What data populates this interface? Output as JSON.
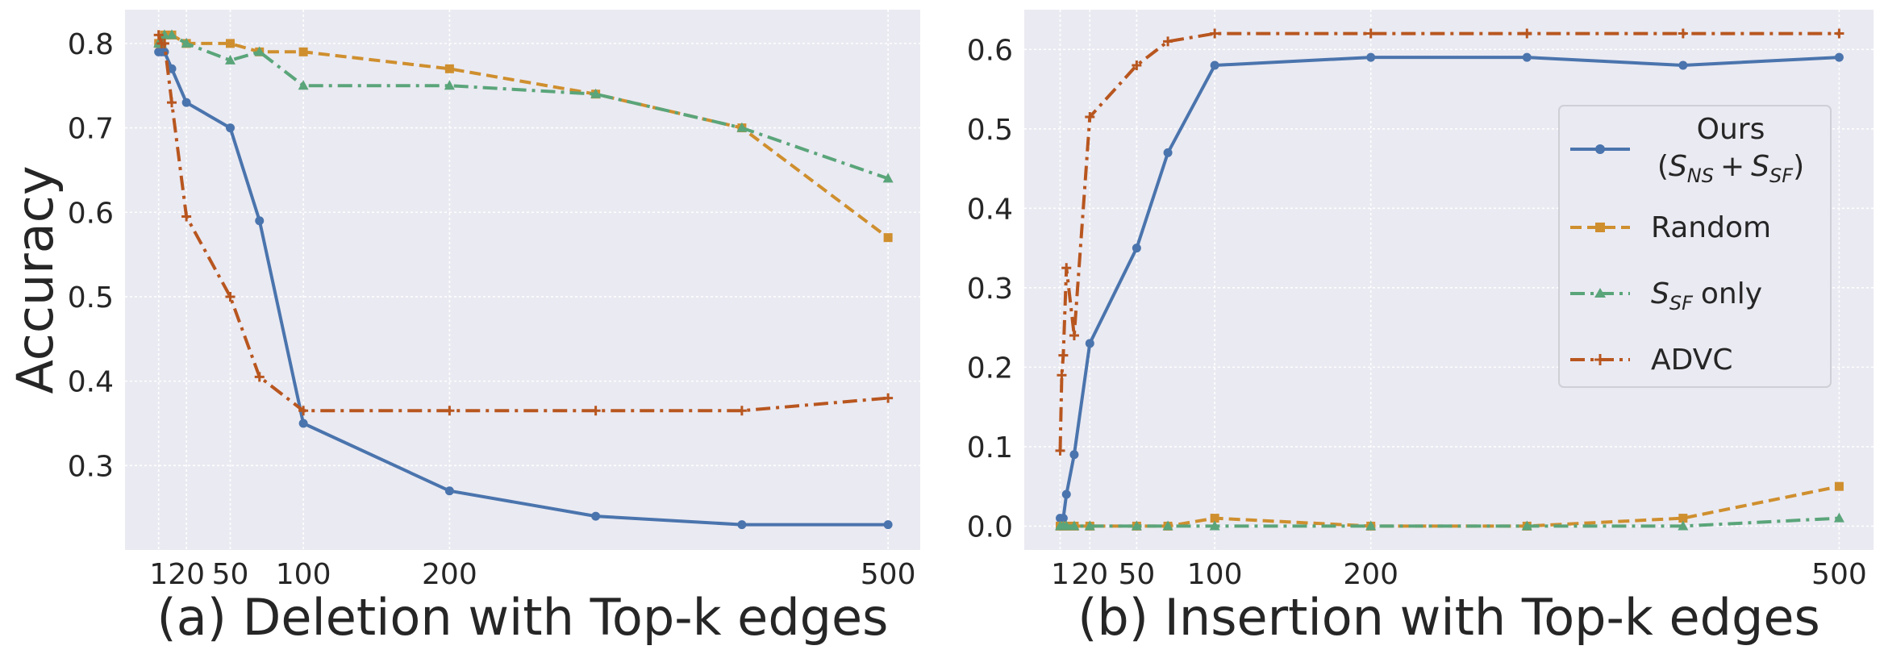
{
  "chart_data": [
    {
      "type": "line",
      "title": "(a) Deletion with Top-k edges",
      "xlabel": "",
      "ylabel": "Accuracy",
      "xlim": [
        -22,
        522
      ],
      "ylim": [
        0.2,
        0.84
      ],
      "x_ticks": [
        1,
        20,
        50,
        100,
        200,
        500
      ],
      "x_tick_labels": [
        "1",
        "20",
        "50",
        "100",
        "200",
        "500"
      ],
      "y_ticks": [
        0.3,
        0.4,
        0.5,
        0.6,
        0.7,
        0.8
      ],
      "y_tick_labels": [
        "0.3",
        "0.4",
        "0.5",
        "0.6",
        "0.7",
        "0.8"
      ],
      "grid": true,
      "series": [
        {
          "name": "Ours (S_NS + S_SF)",
          "color": "#4a74ad",
          "dash": "solid",
          "marker": "circle",
          "points": [
            [
              1,
              0.79
            ],
            [
              3,
              0.79
            ],
            [
              5,
              0.79
            ],
            [
              10,
              0.77
            ],
            [
              20,
              0.73
            ],
            [
              50,
              0.7
            ],
            [
              70,
              0.59
            ],
            [
              100,
              0.35
            ],
            [
              200,
              0.27
            ],
            [
              300,
              0.24
            ],
            [
              400,
              0.23
            ],
            [
              500,
              0.23
            ]
          ]
        },
        {
          "name": "Random",
          "color": "#cf8f2e",
          "dash": "dashed",
          "marker": "square",
          "points": [
            [
              1,
              0.8
            ],
            [
              3,
              0.8
            ],
            [
              5,
              0.81
            ],
            [
              10,
              0.81
            ],
            [
              20,
              0.8
            ],
            [
              50,
              0.8
            ],
            [
              70,
              0.79
            ],
            [
              100,
              0.79
            ],
            [
              200,
              0.77
            ],
            [
              300,
              0.74
            ],
            [
              400,
              0.7
            ],
            [
              500,
              0.57
            ]
          ]
        },
        {
          "name": "S_SF only",
          "color": "#5aa57a",
          "dash": "dashdot",
          "marker": "triangle",
          "points": [
            [
              1,
              0.8
            ],
            [
              3,
              0.8
            ],
            [
              5,
              0.81
            ],
            [
              10,
              0.81
            ],
            [
              20,
              0.8
            ],
            [
              50,
              0.78
            ],
            [
              70,
              0.79
            ],
            [
              100,
              0.75
            ],
            [
              200,
              0.75
            ],
            [
              300,
              0.74
            ],
            [
              400,
              0.7
            ],
            [
              500,
              0.64
            ]
          ]
        },
        {
          "name": "ADVC",
          "color": "#b8561f",
          "dash": "dashdot",
          "marker": "plus",
          "points": [
            [
              1,
              0.81
            ],
            [
              3,
              0.8
            ],
            [
              5,
              0.8
            ],
            [
              10,
              0.73
            ],
            [
              20,
              0.595
            ],
            [
              50,
              0.5
            ],
            [
              70,
              0.405
            ],
            [
              100,
              0.365
            ],
            [
              200,
              0.365
            ],
            [
              300,
              0.365
            ],
            [
              400,
              0.365
            ],
            [
              500,
              0.38
            ]
          ]
        }
      ]
    },
    {
      "type": "line",
      "title": "(b) Insertion with Top-k edges",
      "xlabel": "",
      "ylabel": "",
      "xlim": [
        -22,
        522
      ],
      "ylim": [
        -0.03,
        0.65
      ],
      "x_ticks": [
        1,
        20,
        50,
        100,
        200,
        500
      ],
      "x_tick_labels": [
        "1",
        "20",
        "50",
        "100",
        "200",
        "500"
      ],
      "y_ticks": [
        0.0,
        0.1,
        0.2,
        0.3,
        0.4,
        0.5,
        0.6
      ],
      "y_tick_labels": [
        "0.0",
        "0.1",
        "0.2",
        "0.3",
        "0.4",
        "0.5",
        "0.6"
      ],
      "grid": true,
      "legend_position": "center-right",
      "series": [
        {
          "name": "Ours (S_NS + S_SF)",
          "color": "#4a74ad",
          "dash": "solid",
          "marker": "circle",
          "points": [
            [
              1,
              0.01
            ],
            [
              3,
              0.01
            ],
            [
              5,
              0.04
            ],
            [
              10,
              0.09
            ],
            [
              20,
              0.23
            ],
            [
              50,
              0.35
            ],
            [
              70,
              0.47
            ],
            [
              100,
              0.58
            ],
            [
              200,
              0.59
            ],
            [
              300,
              0.59
            ],
            [
              400,
              0.58
            ],
            [
              500,
              0.59
            ]
          ]
        },
        {
          "name": "Random",
          "color": "#cf8f2e",
          "dash": "dashed",
          "marker": "square",
          "points": [
            [
              1,
              0.0
            ],
            [
              3,
              0.0
            ],
            [
              5,
              0.0
            ],
            [
              10,
              0.0
            ],
            [
              20,
              0.0
            ],
            [
              50,
              0.0
            ],
            [
              70,
              0.0
            ],
            [
              100,
              0.01
            ],
            [
              200,
              0.0
            ],
            [
              300,
              0.0
            ],
            [
              400,
              0.01
            ],
            [
              500,
              0.05
            ]
          ]
        },
        {
          "name": "S_SF only",
          "color": "#5aa57a",
          "dash": "dashdot",
          "marker": "triangle",
          "points": [
            [
              1,
              0.0
            ],
            [
              3,
              0.0
            ],
            [
              5,
              0.0
            ],
            [
              10,
              0.0
            ],
            [
              20,
              0.0
            ],
            [
              50,
              0.0
            ],
            [
              70,
              0.0
            ],
            [
              100,
              0.0
            ],
            [
              200,
              0.0
            ],
            [
              300,
              0.0
            ],
            [
              400,
              0.0
            ],
            [
              500,
              0.01
            ]
          ]
        },
        {
          "name": "ADVC",
          "color": "#b8561f",
          "dash": "dashdot",
          "marker": "plus",
          "points": [
            [
              1,
              0.095
            ],
            [
              2,
              0.19
            ],
            [
              3,
              0.215
            ],
            [
              5,
              0.325
            ],
            [
              10,
              0.24
            ],
            [
              20,
              0.515
            ],
            [
              50,
              0.58
            ],
            [
              70,
              0.61
            ],
            [
              100,
              0.62
            ],
            [
              200,
              0.62
            ],
            [
              300,
              0.62
            ],
            [
              400,
              0.62
            ],
            [
              500,
              0.62
            ]
          ]
        }
      ]
    }
  ],
  "legend": {
    "entries": [
      {
        "line1": "Ours",
        "line2": {
          "open": "(",
          "s1": "S",
          "sub1": "NS",
          "plus": "+",
          "s2": "S",
          "sub2": "SF",
          "close": ")"
        }
      },
      {
        "label": "Random"
      },
      {
        "s": "S",
        "sub": "SF",
        "rest": "only"
      },
      {
        "label": "ADVC"
      }
    ]
  }
}
